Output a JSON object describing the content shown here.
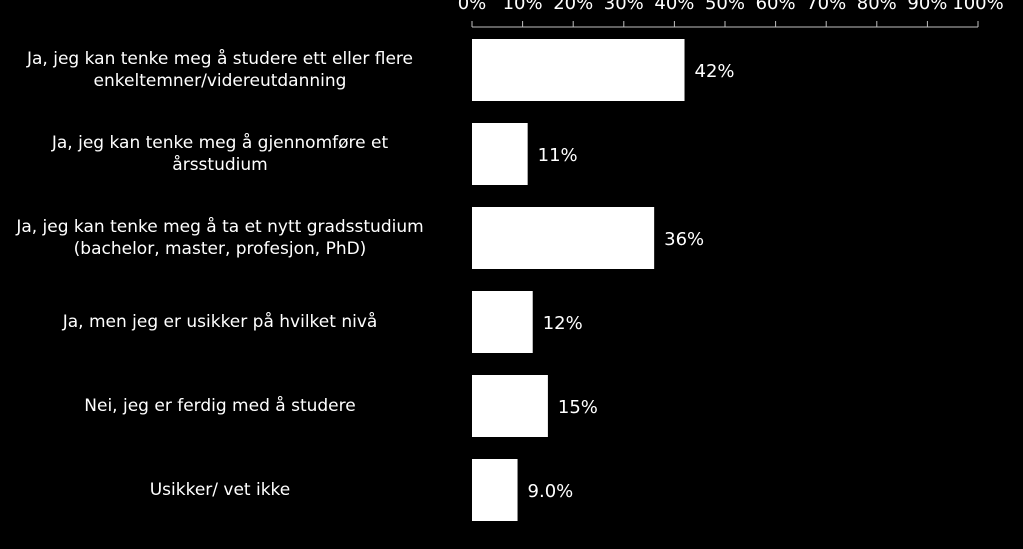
{
  "chart_data": {
    "type": "hbar",
    "categories": [
      "Ja, jeg kan tenke meg å studere ett eller flere\nenkeltemner/videreutdanning",
      "Ja, jeg kan tenke meg å gjennomføre et\nårsstudium",
      "Ja, jeg kan tenke meg å ta et nytt gradsstudium\n(bachelor, master, profesjon, PhD)",
      "Ja, men jeg er usikker på hvilket nivå",
      "Nei, jeg er ferdig med å studere",
      "Usikker/ vet ikke"
    ],
    "values": [
      42,
      11,
      36,
      12,
      15,
      9.0
    ],
    "value_labels": [
      "42%",
      "11%",
      "36%",
      "12%",
      "15%",
      "9.0%"
    ],
    "color": "#ffffff",
    "xlim": [
      0,
      100
    ],
    "xticks": [
      {
        "value": 0,
        "label": "0%"
      },
      {
        "value": 10,
        "label": "10%"
      },
      {
        "value": 20,
        "label": "20%"
      },
      {
        "value": 30,
        "label": "30%"
      },
      {
        "value": 40,
        "label": "40%"
      },
      {
        "value": 50,
        "label": "50%"
      },
      {
        "value": 60,
        "label": "60%"
      },
      {
        "value": 70,
        "label": "70%"
      },
      {
        "value": 80,
        "label": "80%"
      },
      {
        "value": 90,
        "label": "90%"
      },
      {
        "value": 100,
        "label": "100%"
      }
    ]
  }
}
